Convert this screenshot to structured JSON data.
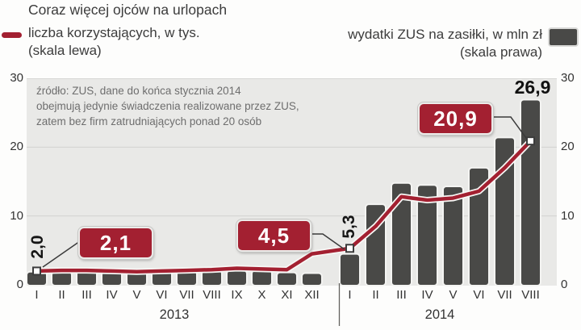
{
  "header": {
    "title": "Coraz więcej ojców na urlopach",
    "legend_line": {
      "label": "liczba korzystających, w tys.",
      "scale_note": "(skala lewa)"
    },
    "legend_bar": {
      "label": "wydatki ZUS na zasiłki, w mln zł",
      "scale_note": "(skala prawa)"
    }
  },
  "source_note": [
    "źródło: ZUS, dane do końca stycznia 2014",
    "obejmują jedynie świadczenia realizowane przez ZUS,",
    "zatem bez firm zatrudniających ponad 20 osób"
  ],
  "colors": {
    "accent_red": "#a32031",
    "bar_gray": "#494947",
    "plot_bg": "#e9e9e7",
    "grid": "#d2d2d0",
    "connector": "#3a3a3a"
  },
  "chart_data": {
    "type": "bar",
    "subtype": "bar+line combo, dual scale",
    "categories": [
      "I",
      "II",
      "III",
      "IV",
      "V",
      "VI",
      "VII",
      "VIII",
      "IX",
      "X",
      "XI",
      "XII",
      "I",
      "II",
      "III",
      "IV",
      "V",
      "VI",
      "VII",
      "VIII"
    ],
    "year_groups": [
      {
        "label": "2013",
        "count": 12
      },
      {
        "label": "2014",
        "count": 8
      }
    ],
    "series": [
      {
        "name": "liczba korzystających, w tys. (skala lewa)",
        "type": "line",
        "color": "#a32031",
        "values": [
          2.0,
          2.1,
          2.1,
          2.0,
          1.9,
          2.0,
          2.1,
          2.2,
          2.4,
          2.3,
          2.2,
          4.5,
          5.3,
          8.5,
          12.8,
          12.3,
          12.6,
          13.6,
          17.0,
          20.9
        ]
      },
      {
        "name": "wydatki ZUS na zasiłki, w mln zł (skala prawa)",
        "type": "bar",
        "color": "#494947",
        "values": [
          1.9,
          1.9,
          2.0,
          1.9,
          1.9,
          2.0,
          2.0,
          2.1,
          2.1,
          2.1,
          1.8,
          1.7,
          4.5,
          11.7,
          14.8,
          14.5,
          14.3,
          17.0,
          21.4,
          26.9
        ]
      }
    ],
    "ylim": [
      0,
      30
    ],
    "yticks": [
      0,
      10,
      20,
      30
    ],
    "grid": "horizontal lines at 10 and 20",
    "legend_position": "top",
    "annotations": [
      {
        "kind": "rotated-point-label",
        "text": "2,0",
        "point_index": 0
      },
      {
        "kind": "badge",
        "text": "2,1",
        "point_index": 1
      },
      {
        "kind": "badge",
        "text": "4,5",
        "point_index": 11
      },
      {
        "kind": "rotated-point-label",
        "text": "5,3",
        "point_index": 12
      },
      {
        "kind": "badge",
        "text": "20,9",
        "point_index": 19
      },
      {
        "kind": "bar-top-label",
        "text": "26,9",
        "point_index": 19
      }
    ],
    "marker_point_indices": [
      0,
      12,
      19
    ]
  }
}
